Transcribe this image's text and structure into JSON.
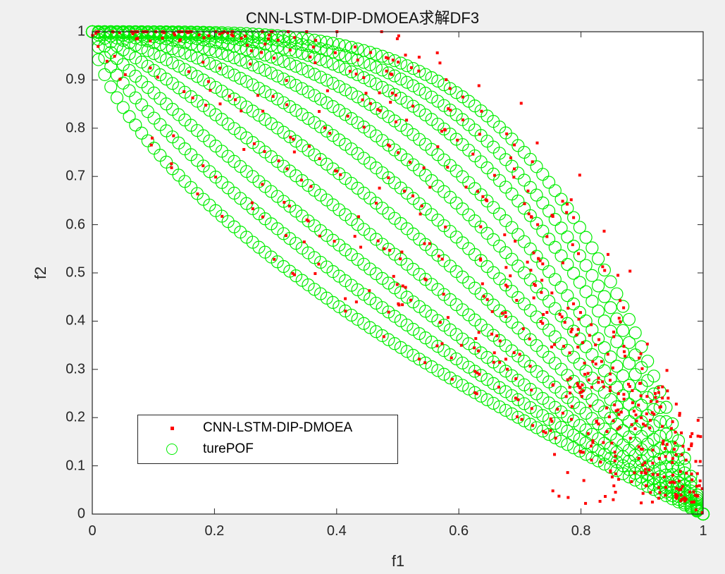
{
  "chart_data": {
    "type": "scatter",
    "title": "CNN-LSTM-DIP-DMOEA求解DF3",
    "xlabel": "f1",
    "ylabel": "f2",
    "xlim": [
      0,
      1
    ],
    "ylim": [
      0,
      1
    ],
    "xticks": [
      "0",
      "0.2",
      "0.4",
      "0.6",
      "0.8",
      "1"
    ],
    "yticks": [
      "0",
      "0.1",
      "0.2",
      "0.3",
      "0.4",
      "0.5",
      "0.6",
      "0.7",
      "0.8",
      "0.9",
      "1"
    ],
    "grid": false,
    "legend_position": "lower-left",
    "series": [
      {
        "name": "CNN-LSTM-DIP-DMOEA",
        "marker": "filled dot",
        "color": "#ff0000",
        "description": "Scattered approximate solutions lying along and slightly above each true front, with denser outliers near f1≈0.8–1.0",
        "points_per_front": 45
      },
      {
        "name": "turePOF",
        "marker": "open circle",
        "color": "#00ee00",
        "description": "Family of true Pareto fronts f2 = 1 - f1^H for varying H (concave to convex)",
        "front_exponents": [
          0.62,
          0.75,
          0.9,
          1.1,
          1.35,
          1.65,
          2.0,
          2.4,
          2.9,
          3.4,
          4.0
        ],
        "points_per_front": 100
      }
    ]
  },
  "legend": {
    "items": [
      "CNN-LSTM-DIP-DMOEA",
      "turePOF"
    ]
  }
}
